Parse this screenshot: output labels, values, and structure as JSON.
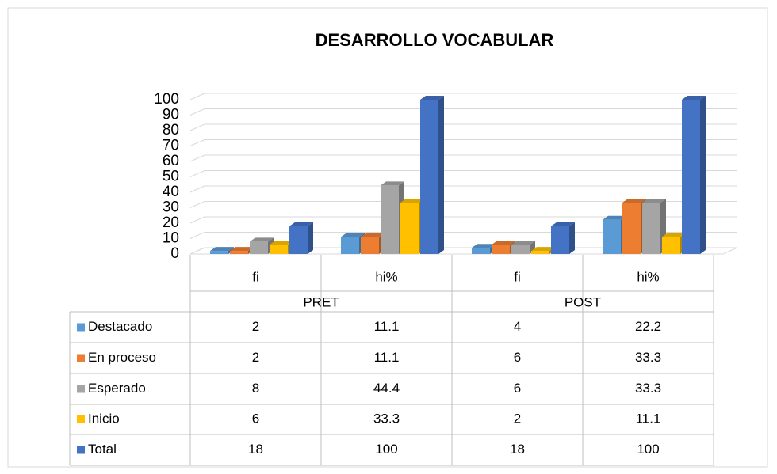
{
  "chart_data": {
    "type": "bar",
    "title": "DESARROLLO VOCABULAR",
    "categories": [
      "fi",
      "hi%",
      "fi",
      "hi%"
    ],
    "groups": [
      "PRET",
      "POST"
    ],
    "series": [
      {
        "name": "Destacado",
        "color": "#5b9bd5",
        "values": [
          2,
          11.1,
          4,
          22.2
        ]
      },
      {
        "name": "En proceso",
        "color": "#ed7d31",
        "values": [
          2,
          11.1,
          6,
          33.3
        ]
      },
      {
        "name": "Esperado",
        "color": "#a5a5a5",
        "values": [
          8,
          44.4,
          6,
          33.3
        ]
      },
      {
        "name": "Inicio",
        "color": "#ffc000",
        "values": [
          6,
          33.3,
          2,
          11.1
        ]
      },
      {
        "name": "Total",
        "color": "#4472c4",
        "values": [
          18,
          100,
          18,
          100
        ]
      }
    ],
    "ylim": [
      0,
      100
    ],
    "yticks": [
      0,
      10,
      20,
      30,
      40,
      50,
      60,
      70,
      80,
      90,
      100
    ],
    "grid": true
  }
}
